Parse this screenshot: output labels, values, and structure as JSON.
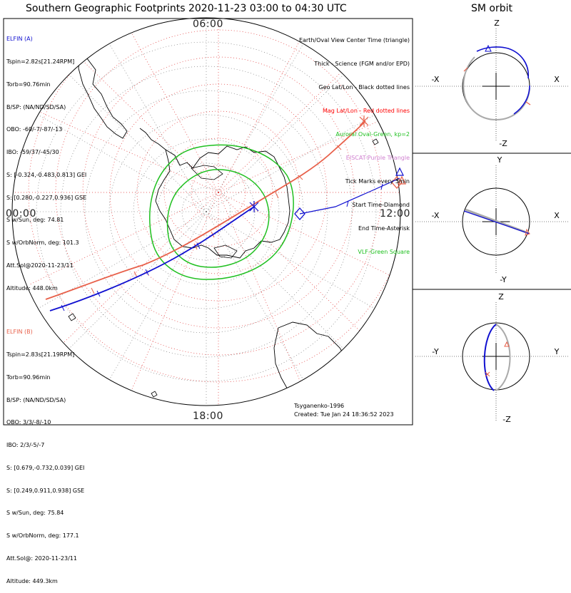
{
  "title": "Southern Geographic Footprints 2020-11-23 03:00 to 04:30 UTC",
  "orbit_title": "SM orbit",
  "clock_labels": {
    "top": "06:00",
    "left": "00:00",
    "right": "12:00",
    "bottom": "18:00"
  },
  "elfin_a": {
    "name": "ELFIN (A)",
    "lines": [
      "Tspin=2.82s[21.24RPM]",
      "Torb=90.76min",
      "B/SP: (NA/ND/SD/SA)",
      "OBO: -60/-7/-87/-13",
      "IBO: -59/37/-45/30",
      "S: [-0.324,-0.483,0.813] GEI",
      "S: [0.280,-0.227,0.936] GSE",
      "S w/Sun, deg: 74.81",
      "S w/OrbNorm, deg: 101.3",
      "Att.Sol@2020-11-23/11",
      "Altitude: 448.0km"
    ],
    "color": "#1010d0"
  },
  "elfin_b": {
    "name": "ELFIN (B)",
    "lines": [
      "Tspin=2.83s[21.19RPM]",
      "Torb=90.96min",
      "B/SP: (NA/ND/SD/SA)",
      "OBO: 3/3/-8/-10",
      "IBO: 2/3/-5/-7",
      "S: [0.679,-0.732,0.039] GEI",
      "S: [0.249,0.911,0.938] GSE",
      "S w/Sun, deg: 75.84",
      "S w/OrbNorm, deg: 177.1",
      "Att.Sol@: 2020-11-23/11",
      "Altitude: 449.3km"
    ],
    "color": "#e8604a"
  },
  "legend": [
    {
      "text": "Earth/Oval View Center Time (triangle)",
      "color": "#000000"
    },
    {
      "text": "Thick - Science (FGM and/or EPD)",
      "color": "#000000"
    },
    {
      "text": "Geo Lat/Lon - Black dotted lines",
      "color": "#000000"
    },
    {
      "text": "Mag Lat/Lon - Red dotted lines",
      "color": "#ff0000"
    },
    {
      "text": "Auroral Oval-Green, kp=2",
      "color": "#20c020"
    },
    {
      "text": "EISCAT-Purple Triangle",
      "color": "#d080d0"
    },
    {
      "text": "Tick Marks every 5min",
      "color": "#000000"
    },
    {
      "text": "Start Time-Diamond",
      "color": "#000000"
    },
    {
      "text": "End Time-Asterisk",
      "color": "#000000"
    },
    {
      "text": "VLF-Green Square",
      "color": "#20c020"
    }
  ],
  "footer": {
    "model": "Tsyganenko-1996",
    "created": "Created: Tue Jan 24 18:36:52 2023"
  },
  "orbit_panels": [
    {
      "top": "Z",
      "bottom": "-Z",
      "left": "-X",
      "right": "X"
    },
    {
      "top": "Y",
      "bottom": "-Y",
      "left": "-X",
      "right": "X"
    },
    {
      "top": "Z",
      "bottom": "-Z",
      "left": "-Y",
      "right": "Y"
    }
  ],
  "colors": {
    "trackA": "#1010d0",
    "trackB": "#e8604a",
    "oval": "#20c020",
    "grid_mag": "#e03030"
  },
  "icons": [
    "start-diamond-icon",
    "end-asterisk-icon",
    "view-center-triangle-icon"
  ]
}
